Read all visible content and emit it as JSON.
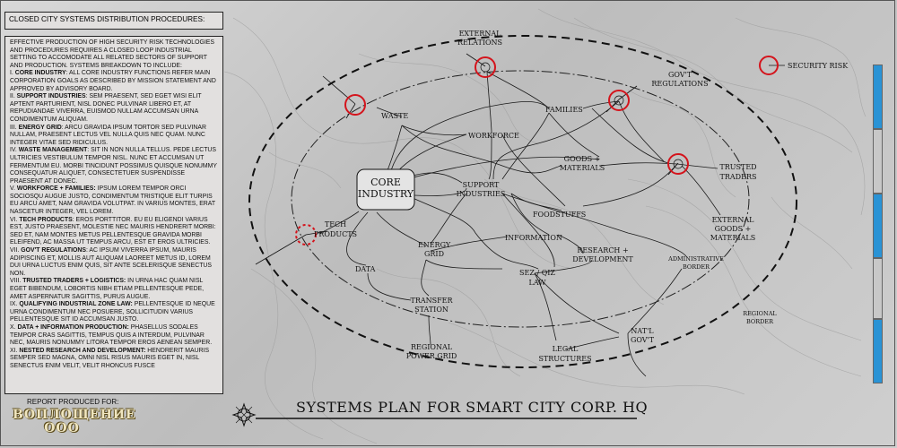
{
  "header": {
    "title": "CLOSED CITY SYSTEMS DISTRIBUTION PROCEDURES:"
  },
  "report": {
    "intro": "EFFECTIVE PRODUCTION OF HIGH SECURITY RISK TECHNOLOGIES AND PROCEDURES REQUIRES A CLOSED LOOP INDUSTRIAL SETTING TO ACCOMODATE ALL RELATED SECTORS OF SUPPORT AND PRODUCTION.  SYSTEMS BREAKDOWN TO INCLUDE:",
    "sections": [
      {
        "num": "I.",
        "head": "CORE INDUSTRY",
        "body": ": ALL CORE INDUSTRY FUNCTIONS REFER MAIN CORPORATION GOALS AS DESCRIBED BY MISSION STATEMENT AND APPROVED BY ADVISORY BOARD."
      },
      {
        "num": "II.",
        "head": "SUPPORT INDUSTRIES",
        "body": ": SEM PRAESENT, SED EGET WISI ELIT APTENT PARTURIENT, NISL DONEC PULVINAR LIBERO ET, AT REPUDIANDAE VIVERRA, EUISMOD NULLAM ACCUMSAN URNA CONDIMENTUM ALIQUAM."
      },
      {
        "num": "III.",
        "head": "ENERGY GRID",
        "body": ": ARCU GRAVIDA IPSUM TORTOR SED PULVINAR NULLAM, PRAESENT LECTUS VEL NULLA QUIS NEC QUAM. NUNC INTEGER VITAE SED RIDICULUS."
      },
      {
        "num": "IV.",
        "head": "WASTE MANAGEMENT",
        "body": ": SIT IN NON NULLA TELLUS. PEDE LECTUS ULTRICIES VESTIBULUM TEMPOR NISL. NUNC ET ACCUMSAN UT FERMENTUM EU. MORBI TINCIDUNT POSSIMUS QUISQUE NONUMMY CONSEQUATUR ALIQUET, CONSECTETUER SUSPENDISSE PRAESENT AT DONEC."
      },
      {
        "num": "V.",
        "head": "WORKFORCE + FAMILIES:",
        "body": " IPSUM LOREM TEMPOR ORCI SOCIOSQU AUGUE JUSTO, CONDIMENTUM TRISTIQUE ELIT TURPIS EU ARCU AMET, NAM GRAVIDA VOLUTPAT. IN VARIUS MONTES, ERAT NASCETUR INTEGER, VEL LOREM."
      },
      {
        "num": "VI.",
        "head": "TECH PRODUCTS",
        "body": ": EROS PORTTITOR. EU EU ELIGENDI VARIUS EST, JUSTO PRAESENT, MOLESTIE NEC MAURIS HENDRERIT MORBI: SED ET, NAM MONTES METUS PELLENTESQUE GRAVIDA MORBI ELEIFEND, AC MASSA UT TEMPUS ARCU, EST ET EROS ULTRICIES."
      },
      {
        "num": "VII.",
        "head": "GOV'T REGULATIONS",
        "body": ": AC IPSUM VIVERRA IPSUM, MAURIS ADIPISCING ET, MOLLIS AUT ALIQUAM LAOREET METUS ID, LOREM DUI URNA LUCTUS ENIM QUIS, SIT ANTE SCELERISQUE SENECTUS NON."
      },
      {
        "num": "VIII.",
        "head": "TRUSTED TRADERS + LOGISTICS:",
        "body": " IN URNA HAC QUAM NISL EGET BIBENDUM, LOBORTIS NIBH ETIAM PELLENTESQUE PEDE, AMET ASPERNATUR SAGITTIS, PURUS AUGUE."
      },
      {
        "num": "IX.",
        "head": "QUALIFYING INDUSTRIAL ZONE LAW:",
        "body": " PELLENTESQUE ID NEQUE URNA CONDIMENTUM NEC POSUERE, SOLLICITUDIN VARIUS PELLENTESQUE SIT ID ACCUMSAN JUSTO."
      },
      {
        "num": "X.",
        "head": "DATA + INFORMATION PRODUCTION:",
        "body": " PHASELLUS SODALES TEMPOR CRAS SAGITTIS, TEMPUS QUIS A INTERDUM, PULVINAR NEC, MAURIS NONUMMY LITORA TEMPOR EROS AENEAN SEMPER."
      },
      {
        "num": "XI.",
        "head": "NESTED RESEARCH AND DEVELOPMENT:",
        "body": " HENDRERIT MAURIS SEMPER SED MAGNA, OMNI NISL RISUS MAURIS EGET IN, NISL SENECTUS ENIM VELIT, VELIT RHONCUS FUSCE"
      }
    ]
  },
  "footer": {
    "produced_for": "REPORT PRODUCED FOR:",
    "logo_line1": "ВОПЛОЩЕНИЕ",
    "logo_line2": "ООО",
    "plan_title": "SYSTEMS PLAN FOR SMART CITY CORP. HQ"
  },
  "diagram": {
    "core": {
      "line1": "CORE",
      "line2": "INDUSTRY"
    },
    "nodes": {
      "external_relations": [
        "EXTERNAL",
        "RELATIONS"
      ],
      "govt_regulations": [
        "GOV'T",
        "REGULATIONS"
      ],
      "security_risk": "SECURITY RISK",
      "waste": "WASTE",
      "families": "FAMILIES",
      "workforce": "WORKFORCE",
      "goods_materials": [
        "GOODS +",
        "MATERIALS"
      ],
      "trusted_traders": [
        "TRUSTED",
        "TRADERS"
      ],
      "support_industries": [
        "SUPPORT",
        "INDUSTRIES"
      ],
      "foodstuffs": "FOODSTUFFS",
      "external_goods": [
        "EXTERNAL",
        "GOODS +",
        "MATERIALS"
      ],
      "tech_products": [
        "TECH",
        "PRODUCTS"
      ],
      "energy_grid": [
        "ENERGY",
        "GRID"
      ],
      "information": "INFORMATION",
      "research": [
        "RESEARCH +",
        "DEVELOPMENT"
      ],
      "data": "DATA",
      "sez_law": [
        "SEZ / QIZ",
        "LAW"
      ],
      "administrative_border": [
        "ADMINISTRATIVE",
        "BORDER"
      ],
      "transfer_station": [
        "TRANSFER",
        "STATION"
      ],
      "regional_border": [
        "REGIONAL",
        "BORDER"
      ],
      "natl_govt": [
        "NAT'L",
        "GOV'T"
      ],
      "legal_structures": [
        "LEGAL",
        "STRUCTURES"
      ],
      "regional_power_grid": [
        "REGIONAL",
        "POWER GRID"
      ]
    }
  },
  "colors": {
    "risk_red": "#d4141c",
    "sidebar_blue": "#2a93d5",
    "sidebar_grey": "#c8c8c8",
    "logo_gold": "#efe5bf"
  },
  "icons": {
    "compass": "compass-rose-icon",
    "risk_marker": "security-risk-circle-icon"
  }
}
